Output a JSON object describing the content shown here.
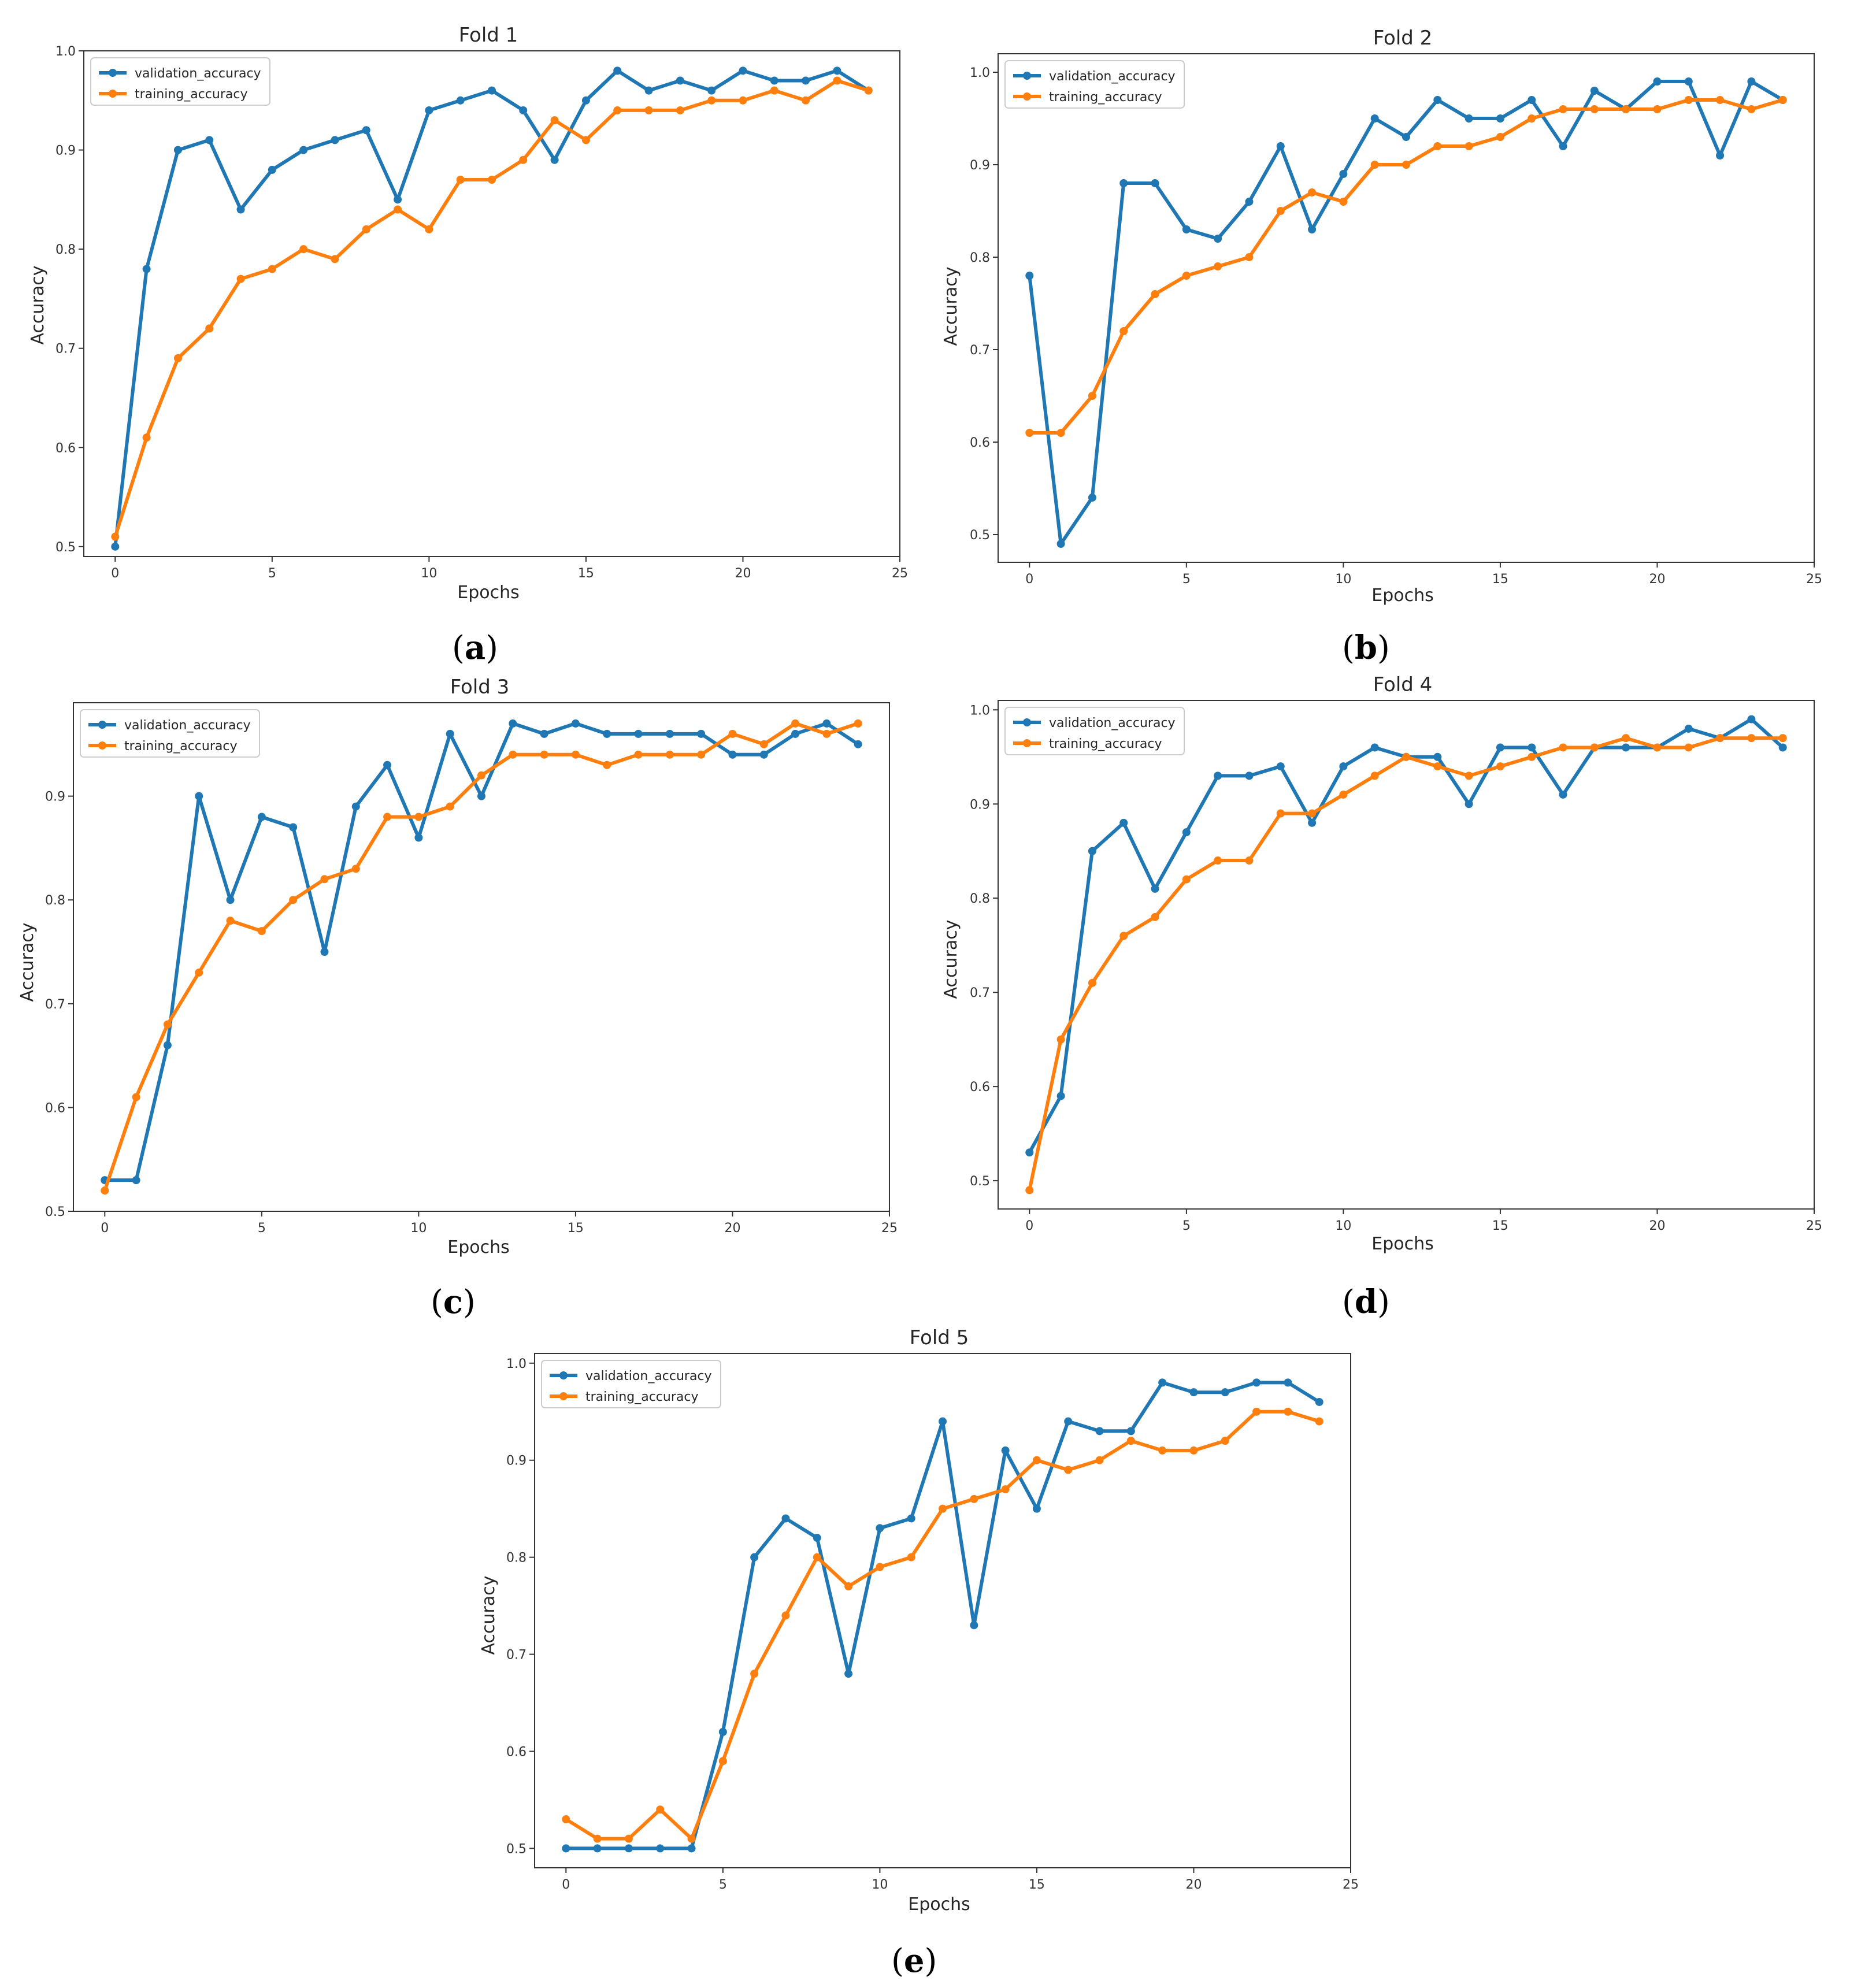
{
  "colors": {
    "validation": "#1f77b4",
    "training": "#ff7f0e"
  },
  "chart_data": [
    {
      "type": "line",
      "title": "Fold 1",
      "caption_open": "(",
      "caption_letter": "a",
      "caption_close": ")",
      "xlabel": "Epochs",
      "ylabel": "Accuracy",
      "xlim": [
        -1,
        25
      ],
      "ylim": [
        0.49,
        1.0
      ],
      "xticks": [
        0,
        5,
        10,
        15,
        20,
        25
      ],
      "yticks": [
        0.5,
        0.6,
        0.7,
        0.8,
        0.9,
        1.0
      ],
      "ytick_labels": [
        "0.5",
        "0.6",
        "0.7",
        "0.8",
        "0.9",
        "1.0"
      ],
      "legend": "upper-left",
      "series": [
        {
          "name": "validation_accuracy",
          "values": [
            0.5,
            0.78,
            0.9,
            0.91,
            0.84,
            0.88,
            0.9,
            0.91,
            0.92,
            0.85,
            0.94,
            0.95,
            0.96,
            0.94,
            0.89,
            0.95,
            0.98,
            0.96,
            0.97,
            0.96,
            0.98,
            0.97,
            0.97,
            0.98,
            0.96
          ]
        },
        {
          "name": "training_accuracy",
          "values": [
            0.51,
            0.61,
            0.69,
            0.72,
            0.77,
            0.78,
            0.8,
            0.79,
            0.82,
            0.84,
            0.82,
            0.87,
            0.87,
            0.89,
            0.93,
            0.91,
            0.94,
            0.94,
            0.94,
            0.95,
            0.95,
            0.96,
            0.95,
            0.97,
            0.96
          ]
        }
      ]
    },
    {
      "type": "line",
      "title": "Fold 2",
      "caption_open": "(",
      "caption_letter": "b",
      "caption_close": ")",
      "xlabel": "Epochs",
      "ylabel": "Accuracy",
      "xlim": [
        -1,
        25
      ],
      "ylim": [
        0.47,
        1.02
      ],
      "xticks": [
        0,
        5,
        10,
        15,
        20,
        25
      ],
      "yticks": [
        0.5,
        0.6,
        0.7,
        0.8,
        0.9,
        1.0
      ],
      "ytick_labels": [
        "0.5",
        "0.6",
        "0.7",
        "0.8",
        "0.9",
        "1.0"
      ],
      "legend": "upper-left",
      "series": [
        {
          "name": "validation_accuracy",
          "values": [
            0.78,
            0.49,
            0.54,
            0.88,
            0.88,
            0.83,
            0.82,
            0.86,
            0.92,
            0.83,
            0.89,
            0.95,
            0.93,
            0.97,
            0.95,
            0.95,
            0.97,
            0.92,
            0.98,
            0.96,
            0.99,
            0.99,
            0.91,
            0.99,
            0.97
          ]
        },
        {
          "name": "training_accuracy",
          "values": [
            0.61,
            0.61,
            0.65,
            0.72,
            0.76,
            0.78,
            0.79,
            0.8,
            0.85,
            0.87,
            0.86,
            0.9,
            0.9,
            0.92,
            0.92,
            0.93,
            0.95,
            0.96,
            0.96,
            0.96,
            0.96,
            0.97,
            0.97,
            0.96,
            0.97
          ]
        }
      ]
    },
    {
      "type": "line",
      "title": "Fold 3",
      "caption_open": "(",
      "caption_letter": "c",
      "caption_close": ")",
      "xlabel": "Epochs",
      "ylabel": "Accuracy",
      "xlim": [
        -1,
        25
      ],
      "ylim": [
        0.5,
        0.99
      ],
      "xticks": [
        0,
        5,
        10,
        15,
        20,
        25
      ],
      "yticks": [
        0.5,
        0.6,
        0.7,
        0.8,
        0.9
      ],
      "ytick_labels": [
        "0.5",
        "0.6",
        "0.7",
        "0.8",
        "0.9"
      ],
      "legend": "upper-left",
      "series": [
        {
          "name": "validation_accuracy",
          "values": [
            0.53,
            0.53,
            0.66,
            0.9,
            0.8,
            0.88,
            0.87,
            0.75,
            0.89,
            0.93,
            0.86,
            0.96,
            0.9,
            0.97,
            0.96,
            0.97,
            0.96,
            0.96,
            0.96,
            0.96,
            0.94,
            0.94,
            0.96,
            0.97,
            0.95
          ]
        },
        {
          "name": "training_accuracy",
          "values": [
            0.52,
            0.61,
            0.68,
            0.73,
            0.78,
            0.77,
            0.8,
            0.82,
            0.83,
            0.88,
            0.88,
            0.89,
            0.92,
            0.94,
            0.94,
            0.94,
            0.93,
            0.94,
            0.94,
            0.94,
            0.96,
            0.95,
            0.97,
            0.96,
            0.97
          ]
        }
      ]
    },
    {
      "type": "line",
      "title": "Fold 4",
      "caption_open": "(",
      "caption_letter": "d",
      "caption_close": ")",
      "xlabel": "Epochs",
      "ylabel": "Accuracy",
      "xlim": [
        -1,
        25
      ],
      "ylim": [
        0.47,
        1.01
      ],
      "xticks": [
        0,
        5,
        10,
        15,
        20,
        25
      ],
      "yticks": [
        0.5,
        0.6,
        0.7,
        0.8,
        0.9,
        1.0
      ],
      "ytick_labels": [
        "0.5",
        "0.6",
        "0.7",
        "0.8",
        "0.9",
        "1.0"
      ],
      "legend": "upper-left",
      "series": [
        {
          "name": "validation_accuracy",
          "values": [
            0.53,
            0.59,
            0.85,
            0.88,
            0.81,
            0.87,
            0.93,
            0.93,
            0.94,
            0.88,
            0.94,
            0.96,
            0.95,
            0.95,
            0.9,
            0.96,
            0.96,
            0.91,
            0.96,
            0.96,
            0.96,
            0.98,
            0.97,
            0.99,
            0.96
          ]
        },
        {
          "name": "training_accuracy",
          "values": [
            0.49,
            0.65,
            0.71,
            0.76,
            0.78,
            0.82,
            0.84,
            0.84,
            0.89,
            0.89,
            0.91,
            0.93,
            0.95,
            0.94,
            0.93,
            0.94,
            0.95,
            0.96,
            0.96,
            0.97,
            0.96,
            0.96,
            0.97,
            0.97,
            0.97
          ]
        }
      ]
    },
    {
      "type": "line",
      "title": "Fold 5",
      "caption_open": "(",
      "caption_letter": "e",
      "caption_close": ")",
      "xlabel": "Epochs",
      "ylabel": "Accuracy",
      "xlim": [
        -1,
        25
      ],
      "ylim": [
        0.48,
        1.01
      ],
      "xticks": [
        0,
        5,
        10,
        15,
        20,
        25
      ],
      "yticks": [
        0.5,
        0.6,
        0.7,
        0.8,
        0.9,
        1.0
      ],
      "ytick_labels": [
        "0.5",
        "0.6",
        "0.7",
        "0.8",
        "0.9",
        "1.0"
      ],
      "legend": "upper-left",
      "series": [
        {
          "name": "validation_accuracy",
          "values": [
            0.5,
            0.5,
            0.5,
            0.5,
            0.5,
            0.62,
            0.8,
            0.84,
            0.82,
            0.68,
            0.83,
            0.84,
            0.94,
            0.73,
            0.91,
            0.85,
            0.94,
            0.93,
            0.93,
            0.98,
            0.97,
            0.97,
            0.98,
            0.98,
            0.96
          ]
        },
        {
          "name": "training_accuracy",
          "values": [
            0.53,
            0.51,
            0.51,
            0.54,
            0.51,
            0.59,
            0.68,
            0.74,
            0.8,
            0.77,
            0.79,
            0.8,
            0.85,
            0.86,
            0.87,
            0.9,
            0.89,
            0.9,
            0.92,
            0.91,
            0.91,
            0.92,
            0.95,
            0.95,
            0.94
          ]
        }
      ]
    }
  ]
}
